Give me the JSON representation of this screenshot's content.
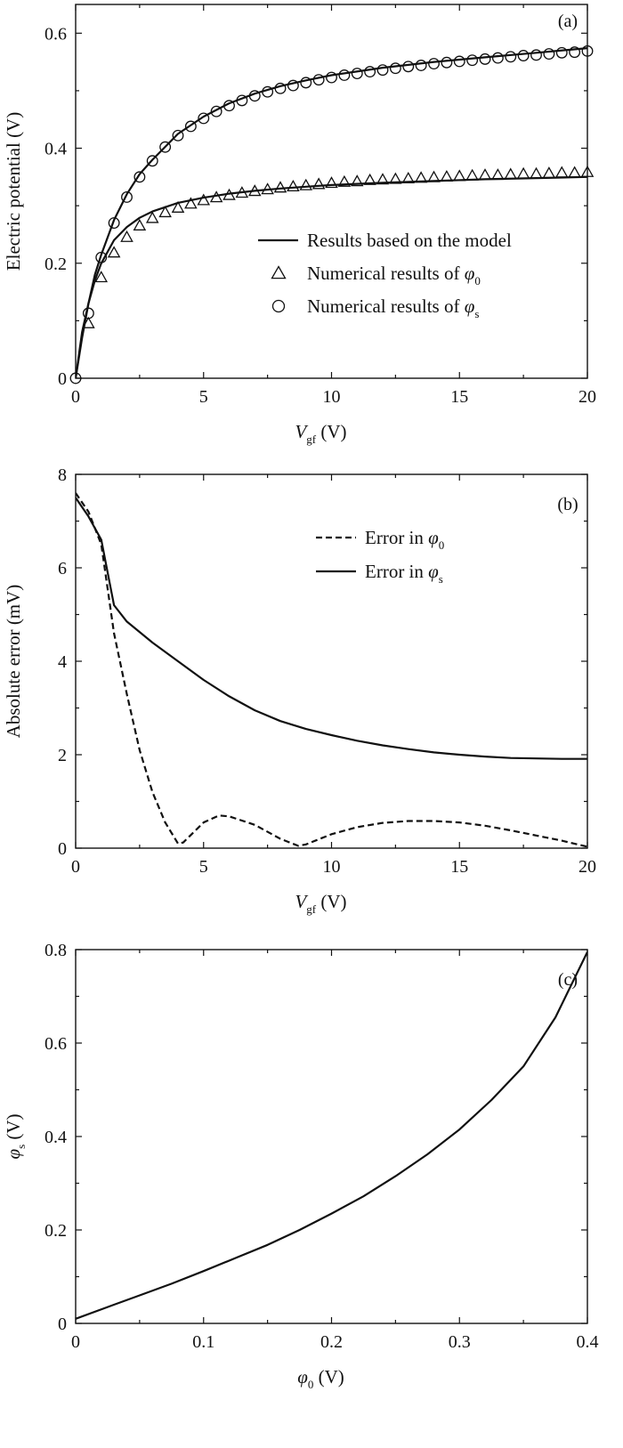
{
  "chart_data": [
    {
      "id": "a",
      "type": "line",
      "panel_label": "(a)",
      "xlabel": "V",
      "xlabel_sub": "gf",
      "xlabel_unit": "(V)",
      "ylabel": "Electric potential (V)",
      "xlim": [
        0,
        20
      ],
      "ylim": [
        0,
        0.65
      ],
      "xticks": [
        0,
        5,
        10,
        15,
        20
      ],
      "yticks": [
        0,
        0.2,
        0.4,
        0.6
      ],
      "xtick_labels": [
        "0",
        "5",
        "10",
        "15",
        "20"
      ],
      "ytick_labels": [
        "0",
        "0.2",
        "0.4",
        "0.6"
      ],
      "grid": false,
      "legend_position": "center-right",
      "legend": [
        {
          "style": "line",
          "text": "Results based on the model"
        },
        {
          "style": "triangle",
          "text": "Numerical results of ",
          "symbol": "φ",
          "sub": "0"
        },
        {
          "style": "circle",
          "text": "Numerical results of ",
          "symbol": "φ",
          "sub": "s"
        }
      ],
      "series": [
        {
          "style": "line",
          "x": [
            0,
            0.25,
            0.5,
            0.75,
            1,
            1.5,
            2,
            2.5,
            3,
            4,
            5,
            6,
            7,
            8,
            9,
            10,
            12,
            14,
            16,
            18,
            20
          ],
          "y": [
            0,
            0.08,
            0.13,
            0.17,
            0.2,
            0.24,
            0.263,
            0.279,
            0.29,
            0.305,
            0.314,
            0.321,
            0.326,
            0.33,
            0.333,
            0.336,
            0.34,
            0.343,
            0.346,
            0.348,
            0.35
          ]
        },
        {
          "style": "line",
          "x": [
            0,
            0.25,
            0.5,
            0.75,
            1,
            1.5,
            2,
            2.5,
            3,
            4,
            5,
            6,
            7,
            8,
            9,
            10,
            12,
            14,
            16,
            18,
            20
          ],
          "y": [
            0,
            0.07,
            0.13,
            0.18,
            0.215,
            0.275,
            0.32,
            0.355,
            0.38,
            0.425,
            0.455,
            0.478,
            0.495,
            0.508,
            0.518,
            0.527,
            0.54,
            0.55,
            0.558,
            0.566,
            0.574
          ]
        },
        {
          "style": "triangle",
          "x": [
            0.5,
            1,
            1.5,
            2,
            2.5,
            3,
            3.5,
            4,
            4.5,
            5,
            5.5,
            6,
            6.5,
            7,
            7.5,
            8,
            8.5,
            9,
            9.5,
            10,
            10.5,
            11,
            11.5,
            12,
            12.5,
            13,
            13.5,
            14,
            14.5,
            15,
            15.5,
            16,
            16.5,
            17,
            17.5,
            18,
            18.5,
            19,
            19.5,
            20
          ],
          "y": [
            0.095,
            0.175,
            0.218,
            0.245,
            0.265,
            0.278,
            0.288,
            0.296,
            0.303,
            0.309,
            0.314,
            0.318,
            0.322,
            0.325,
            0.328,
            0.331,
            0.333,
            0.335,
            0.337,
            0.339,
            0.341,
            0.342,
            0.344,
            0.345,
            0.346,
            0.347,
            0.348,
            0.349,
            0.35,
            0.351,
            0.352,
            0.353,
            0.353,
            0.354,
            0.355,
            0.355,
            0.356,
            0.357,
            0.357,
            0.358
          ]
        },
        {
          "style": "circle",
          "x": [
            0,
            0.5,
            1,
            1.5,
            2,
            2.5,
            3,
            3.5,
            4,
            4.5,
            5,
            5.5,
            6,
            6.5,
            7,
            7.5,
            8,
            8.5,
            9,
            9.5,
            10,
            10.5,
            11,
            11.5,
            12,
            12.5,
            13,
            13.5,
            14,
            14.5,
            15,
            15.5,
            16,
            16.5,
            17,
            17.5,
            18,
            18.5,
            19,
            19.5,
            20
          ],
          "y": [
            0,
            0.113,
            0.21,
            0.27,
            0.315,
            0.35,
            0.378,
            0.402,
            0.422,
            0.438,
            0.452,
            0.464,
            0.474,
            0.483,
            0.491,
            0.498,
            0.504,
            0.509,
            0.514,
            0.519,
            0.523,
            0.527,
            0.53,
            0.533,
            0.536,
            0.539,
            0.542,
            0.544,
            0.547,
            0.549,
            0.551,
            0.553,
            0.555,
            0.557,
            0.559,
            0.561,
            0.562,
            0.564,
            0.566,
            0.567,
            0.569
          ]
        }
      ]
    },
    {
      "id": "b",
      "type": "line",
      "panel_label": "(b)",
      "xlabel": "V",
      "xlabel_sub": "gf",
      "xlabel_unit": "(V)",
      "ylabel": "Absolute error (mV)",
      "xlim": [
        0,
        20
      ],
      "ylim": [
        0,
        8
      ],
      "xticks": [
        0,
        5,
        10,
        15,
        20
      ],
      "yticks": [
        0,
        2,
        4,
        6,
        8
      ],
      "xtick_labels": [
        "0",
        "5",
        "10",
        "15",
        "20"
      ],
      "ytick_labels": [
        "0",
        "2",
        "4",
        "6",
        "8"
      ],
      "grid": false,
      "legend_position": "top-right",
      "legend": [
        {
          "style": "dashed",
          "text": "Error in ",
          "symbol": "φ",
          "sub": "0"
        },
        {
          "style": "solid",
          "text": "Error in ",
          "symbol": "φ",
          "sub": "s"
        }
      ],
      "series": [
        {
          "style": "dashed",
          "x": [
            0,
            0.5,
            1,
            1.5,
            2,
            2.5,
            3,
            3.5,
            4,
            4.2,
            5,
            5.6,
            6,
            7,
            8,
            8.7,
            9,
            10,
            11,
            12,
            13,
            14,
            15,
            16,
            17,
            18,
            19,
            20
          ],
          "y": [
            7.6,
            7.2,
            6.5,
            4.6,
            3.3,
            2.1,
            1.2,
            0.55,
            0.1,
            0.12,
            0.55,
            0.7,
            0.68,
            0.5,
            0.2,
            0.05,
            0.08,
            0.3,
            0.45,
            0.54,
            0.58,
            0.58,
            0.55,
            0.48,
            0.38,
            0.27,
            0.16,
            0.03
          ]
        },
        {
          "style": "solid",
          "x": [
            0,
            0.5,
            1,
            1.5,
            2,
            3,
            4,
            5,
            6,
            7,
            8,
            9,
            10,
            11,
            12,
            13,
            14,
            15,
            16,
            17,
            18,
            19,
            20
          ],
          "y": [
            7.5,
            7.1,
            6.6,
            5.2,
            4.85,
            4.4,
            4.0,
            3.6,
            3.25,
            2.95,
            2.72,
            2.55,
            2.42,
            2.3,
            2.2,
            2.12,
            2.05,
            2.0,
            1.96,
            1.93,
            1.92,
            1.91,
            1.91
          ]
        }
      ]
    },
    {
      "id": "c",
      "type": "line",
      "panel_label": "(c)",
      "xlabel_symbol": "φ",
      "xlabel_sub": "0",
      "xlabel_unit": "(V)",
      "ylabel_symbol": "φ",
      "ylabel_sub": "s",
      "ylabel_unit": "(V)",
      "xlim": [
        0,
        0.4
      ],
      "ylim": [
        0,
        0.8
      ],
      "xticks": [
        0,
        0.1,
        0.2,
        0.3,
        0.4
      ],
      "yticks": [
        0,
        0.2,
        0.4,
        0.6,
        0.8
      ],
      "xtick_labels": [
        "0",
        "0.1",
        "0.2",
        "0.3",
        "0.4"
      ],
      "ytick_labels": [
        "0",
        "0.2",
        "0.4",
        "0.6",
        "0.8"
      ],
      "grid": false,
      "series": [
        {
          "style": "line",
          "x": [
            0,
            0.025,
            0.05,
            0.075,
            0.1,
            0.125,
            0.15,
            0.175,
            0.2,
            0.225,
            0.25,
            0.275,
            0.3,
            0.325,
            0.35,
            0.375,
            0.4
          ],
          "y": [
            0.01,
            0.035,
            0.06,
            0.085,
            0.112,
            0.14,
            0.168,
            0.2,
            0.235,
            0.272,
            0.315,
            0.362,
            0.415,
            0.478,
            0.55,
            0.655,
            0.795
          ]
        }
      ]
    }
  ]
}
